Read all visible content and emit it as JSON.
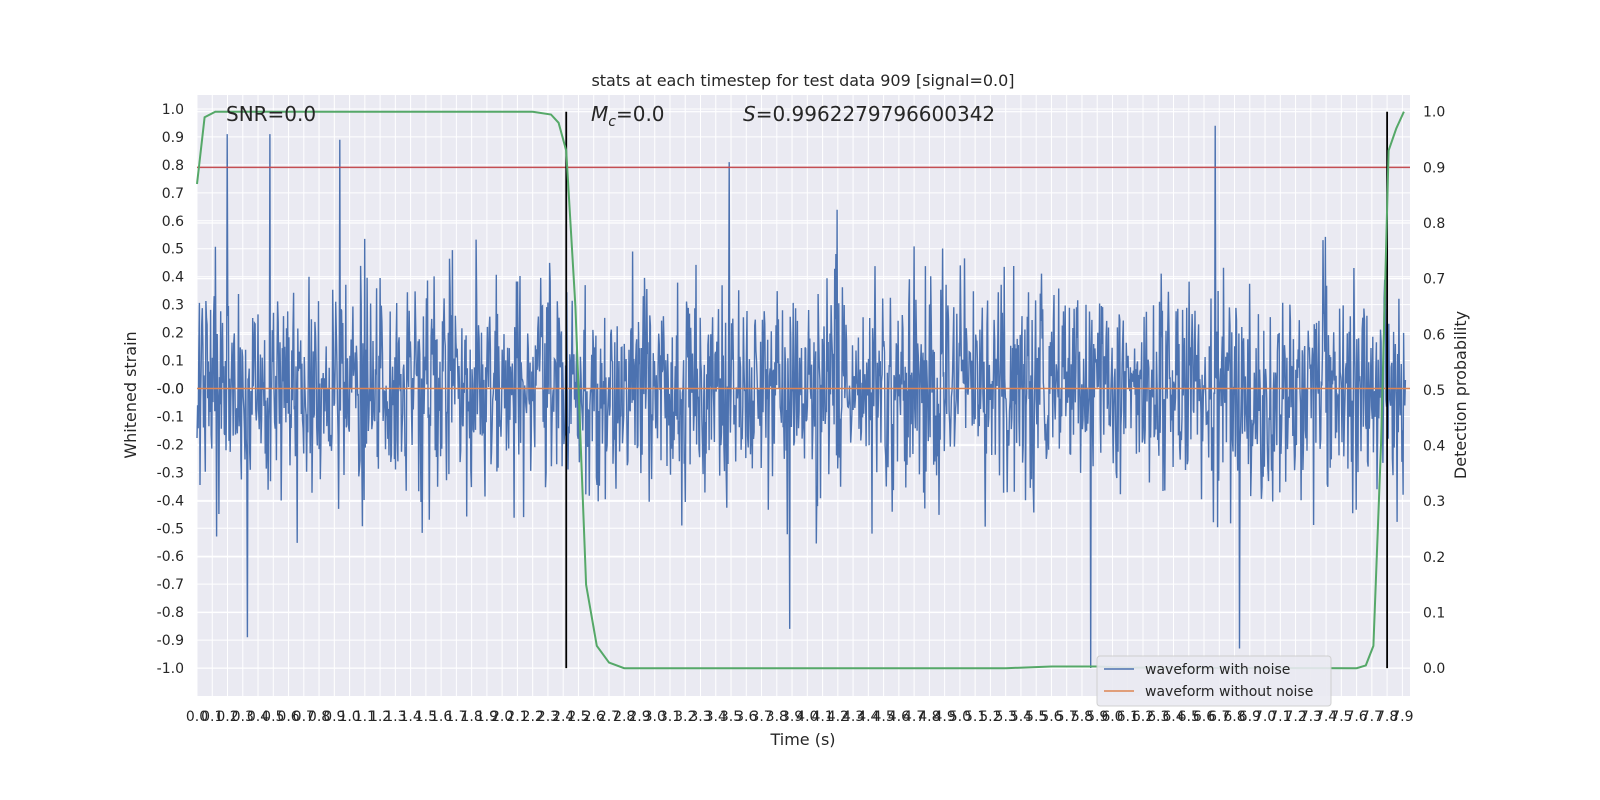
{
  "chart_data": {
    "type": "line",
    "title": "stats at each timestep for test data 909 [signal=0.0]",
    "xlabel": "Time (s)",
    "ylabel": "Whitened strain",
    "y2label": "Detection probability",
    "xlim": [
      0.0,
      7.95
    ],
    "ylim": [
      -1.1,
      1.05
    ],
    "y2lim": [
      -0.05,
      1.03
    ],
    "xticks": [
      "0.0",
      "0.1",
      "0.2",
      "0.3",
      "0.4",
      "0.5",
      "0.6",
      "0.7",
      "0.8",
      "0.9",
      "1.0",
      "1.1",
      "1.2",
      "1.3",
      "1.4",
      "1.5",
      "1.6",
      "1.7",
      "1.8",
      "1.9",
      "2.0",
      "2.1",
      "2.2",
      "2.3",
      "2.4",
      "2.5",
      "2.6",
      "2.7",
      "2.8",
      "2.9",
      "3.0",
      "3.1",
      "3.2",
      "3.3",
      "3.4",
      "3.5",
      "3.6",
      "3.7",
      "3.8",
      "3.9",
      "4.0",
      "4.1",
      "4.2",
      "4.3",
      "4.4",
      "4.5",
      "4.6",
      "4.7",
      "4.8",
      "4.9",
      "5.0",
      "5.1",
      "5.2",
      "5.3",
      "5.4",
      "5.5",
      "5.6",
      "5.7",
      "5.8",
      "5.9",
      "6.0",
      "6.1",
      "6.2",
      "6.3",
      "6.4",
      "6.5",
      "6.6",
      "6.7",
      "6.8",
      "6.9",
      "7.0",
      "7.1",
      "7.2",
      "7.3",
      "7.4",
      "7.5",
      "7.6",
      "7.7",
      "7.8",
      "7.9"
    ],
    "yticks": [
      "1.0",
      "0.9",
      "0.8",
      "0.7",
      "0.6",
      "0.5",
      "0.4",
      "0.3",
      "0.2",
      "0.1",
      "0.0",
      "-0.0",
      "-0.1",
      "-0.2",
      "-0.3",
      "-0.4",
      "-0.5",
      "-0.6",
      "-0.7",
      "-0.8",
      "-0.9",
      "-1.0"
    ],
    "y2ticks": [
      "1.0",
      "0.9",
      "0.8",
      "0.7",
      "0.6",
      "0.5",
      "0.4",
      "0.3",
      "0.2",
      "0.1",
      "0.0"
    ],
    "annotations": {
      "snr": "SNR=0.0",
      "mc_symbol": "M",
      "mc_sub": "c",
      "mc_value": "=0.0",
      "s_symbol": "S",
      "s_value": "=0.9962279796600342"
    },
    "threshold": 0.9,
    "vlines_x": [
      2.42,
      7.8
    ],
    "noisy_waveform": {
      "seed": 909,
      "n_points": 2040,
      "amplitude_range": [
        -1.0,
        0.95
      ],
      "peaks": [
        {
          "x": 0.2,
          "y": 0.91
        },
        {
          "x": 0.48,
          "y": 0.91
        },
        {
          "x": 0.94,
          "y": 0.89
        },
        {
          "x": 3.5,
          "y": 0.81
        },
        {
          "x": 6.7,
          "y": 0.94
        },
        {
          "x": 0.33,
          "y": -0.89
        },
        {
          "x": 3.9,
          "y": -0.86
        },
        {
          "x": 5.88,
          "y": -1.0
        },
        {
          "x": 6.86,
          "y": -0.93
        }
      ]
    },
    "detection_probability": [
      {
        "x": 0.0,
        "y": 0.87
      },
      {
        "x": 0.05,
        "y": 0.99
      },
      {
        "x": 0.12,
        "y": 1.0
      },
      {
        "x": 2.2,
        "y": 1.0
      },
      {
        "x": 2.32,
        "y": 0.995
      },
      {
        "x": 2.37,
        "y": 0.98
      },
      {
        "x": 2.42,
        "y": 0.93
      },
      {
        "x": 2.48,
        "y": 0.65
      },
      {
        "x": 2.55,
        "y": 0.15
      },
      {
        "x": 2.62,
        "y": 0.04
      },
      {
        "x": 2.7,
        "y": 0.01
      },
      {
        "x": 2.8,
        "y": 0.0
      },
      {
        "x": 5.3,
        "y": 0.0
      },
      {
        "x": 5.6,
        "y": 0.003
      },
      {
        "x": 5.9,
        "y": 0.003
      },
      {
        "x": 6.1,
        "y": 0.001
      },
      {
        "x": 7.6,
        "y": 0.0
      },
      {
        "x": 7.66,
        "y": 0.005
      },
      {
        "x": 7.71,
        "y": 0.04
      },
      {
        "x": 7.76,
        "y": 0.4
      },
      {
        "x": 7.81,
        "y": 0.93
      },
      {
        "x": 7.86,
        "y": 0.97
      },
      {
        "x": 7.91,
        "y": 1.0
      }
    ],
    "series": [
      {
        "name": "waveform with noise",
        "color": "#4c72b0",
        "values": [
          0.0
        ]
      },
      {
        "name": "waveform without noise",
        "color": "#dd8452",
        "values": [
          0.0
        ]
      }
    ],
    "colors": {
      "background": "#eaeaf2",
      "grid": "#ffffff",
      "threshold": "#c44e52",
      "detection": "#55a868",
      "vline": "#000000"
    },
    "grid": true,
    "legend_position": "lower right"
  }
}
